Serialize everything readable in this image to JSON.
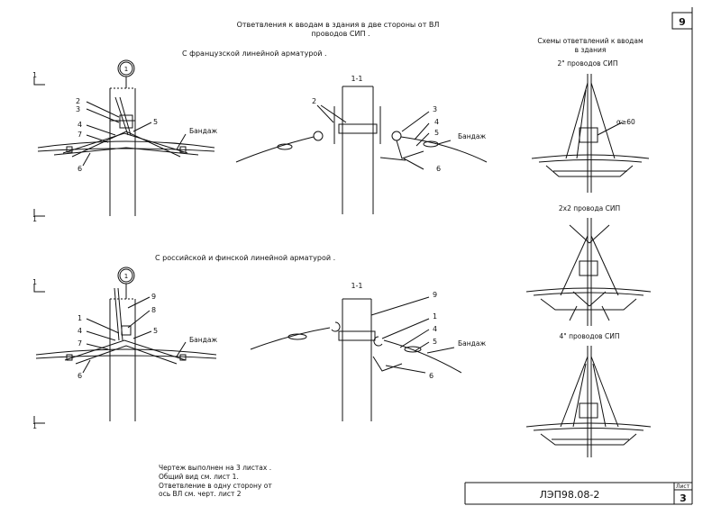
{
  "title": {
    "line1": "Ответвления к вводам в здания в две стороны от ВЛ",
    "line2": "проводов СИП ."
  },
  "sections": {
    "french": "С французской линейной арматурой .",
    "russian": "С российской и финской линейной арматурой ."
  },
  "view_marker": "1",
  "section_label": "1-1",
  "cut_label": "1",
  "callouts": {
    "top_left": [
      "2",
      "3",
      "4",
      "7",
      "5",
      "6"
    ],
    "top_right": [
      "2",
      "3",
      "4",
      "5",
      "6"
    ],
    "bottom_left": [
      "9",
      "8",
      "1",
      "4",
      "7",
      "5",
      "6"
    ],
    "bottom_right": [
      "9",
      "1",
      "4",
      "5",
      "6"
    ]
  },
  "bandage_label": "Бандаж",
  "schemes": {
    "header_line1": "Схемы ответвлений к вводам",
    "header_line2": "в здания",
    "scheme1": "2\" проводов СИП",
    "scheme1_dim": "α≥60",
    "scheme2": "2х2 провода СИП",
    "scheme3": "4\" проводов СИП"
  },
  "notes": {
    "line1": "Чертеж выполнен на 3   листах .",
    "line2": "Общий вид см. лист 1.",
    "line3": "Ответвление в одну сторону от",
    "line4": "ось ВЛ см. черт. лист 2"
  },
  "title_block": {
    "code": "ЛЭП98.08-2",
    "sheet_label": "Лист",
    "sheet_number": "3",
    "corner_number": "9"
  }
}
